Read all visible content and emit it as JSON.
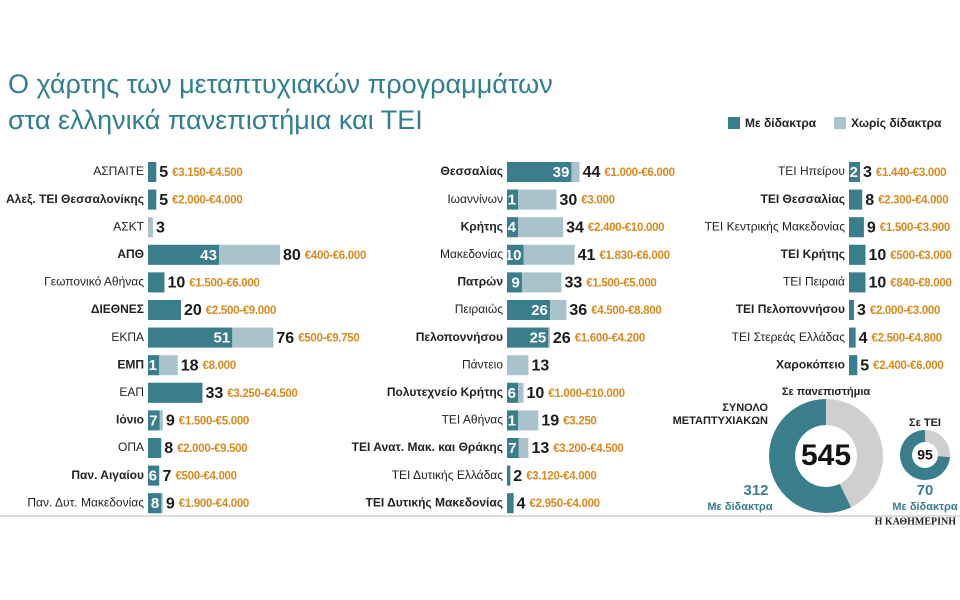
{
  "chart_data": {
    "type": "paired-bar",
    "title": [
      "Ο χάρτης των μεταπτυχιακών προγραμμάτων",
      "στα ελληνικά πανεπιστήμια και ΤΕΙ"
    ],
    "legend": [
      {
        "name": "Με δίδακτρα",
        "color": "#3a7d8c"
      },
      {
        "name": "Χωρίς δίδακτρα",
        "color": "#a9c3cc"
      }
    ],
    "range_color": "#d98a1f",
    "columns": [
      [
        {
          "name": "ΑΣΠΑΙΤΕ",
          "paid": 5,
          "total": 5,
          "range": "€3.150-€4.500"
        },
        {
          "name": "Αλεξ. ΤΕΙ Θεσσαλονίκης",
          "paid": 5,
          "total": 5,
          "range": "€2.000-€4.000"
        },
        {
          "name": "ΑΣΚΤ",
          "paid": 0,
          "total": 3
        },
        {
          "name": "ΑΠΘ",
          "paid": 43,
          "total": 80,
          "range": "€400-€6.000"
        },
        {
          "name": "Γεωπονικό Αθήνας",
          "paid": 10,
          "total": 10,
          "range": "€1.500-€6.000"
        },
        {
          "name": "ΔΙΕΘΝΕΣ",
          "paid": 20,
          "total": 20,
          "range": "€2.500-€9.000"
        },
        {
          "name": "ΕΚΠΑ",
          "paid": 51,
          "total": 76,
          "range": "€500-€9.750"
        },
        {
          "name": "ΕΜΠ",
          "paid": 1,
          "total": 18,
          "range": "€8.000"
        },
        {
          "name": "ΕΑΠ",
          "paid": 33,
          "total": 33,
          "range": "€3.250-€4.500"
        },
        {
          "name": "Ιόνιο",
          "paid": 7,
          "total": 9,
          "range": "€1.500-€5.000"
        },
        {
          "name": "ΟΠΑ",
          "paid": 8,
          "total": 8,
          "range": "€2.000-€9.500"
        },
        {
          "name": "Παν. Αιγαίου",
          "paid": 6,
          "total": 7,
          "range": "€500-€4.000"
        },
        {
          "name": "Παν. Δυτ. Μακεδονίας",
          "paid": 8,
          "total": 9,
          "range": "€1.900-€4.000"
        }
      ],
      [
        {
          "name": "Θεσσαλίας",
          "paid": 39,
          "total": 44,
          "range": "€1.000-€6.000"
        },
        {
          "name": "Ιωαννίνων",
          "paid": 1,
          "total": 30,
          "range": "€3.000"
        },
        {
          "name": "Κρήτης",
          "paid": 4,
          "total": 34,
          "range": "€2.400-€10.000"
        },
        {
          "name": "Μακεδονίας",
          "paid": 10,
          "total": 41,
          "range": "€1.830-€6.000"
        },
        {
          "name": "Πατρών",
          "paid": 9,
          "total": 33,
          "range": "€1.500-€5.000"
        },
        {
          "name": "Πειραιώς",
          "paid": 26,
          "total": 36,
          "range": "€4.500-€8.800"
        },
        {
          "name": "Πελοποννήσου",
          "paid": 25,
          "total": 26,
          "range": "€1.600-€4.200"
        },
        {
          "name": "Πάντειο",
          "paid": 0,
          "total": 13
        },
        {
          "name": "Πολυτεχνείο Κρήτης",
          "paid": 6,
          "total": 10,
          "range": "€1.000-€10.000"
        },
        {
          "name": "ΤΕΙ Αθήνας",
          "paid": 1,
          "total": 19,
          "range": "€3.250"
        },
        {
          "name": "ΤΕΙ Ανατ. Μακ. και Θράκης",
          "paid": 7,
          "total": 13,
          "range": "€3.200-€4.500"
        },
        {
          "name": "ΤΕΙ Δυτικής Ελλάδας",
          "paid": 2,
          "total": 2,
          "range": "€3.120-€4.000"
        },
        {
          "name": "ΤΕΙ Δυτικής Μακεδονίας",
          "paid": 4,
          "total": 4,
          "range": "€2.950-€4.000"
        }
      ],
      [
        {
          "name": "ΤΕΙ Ηπείρου",
          "paid": 2,
          "total": 3,
          "range": "€1.440-€3.000"
        },
        {
          "name": "ΤΕΙ Θεσσαλίας",
          "paid": 8,
          "total": 8,
          "range": "€2.300-€4.000"
        },
        {
          "name": "ΤΕΙ Κεντρικής Μακεδονίας",
          "paid": 9,
          "total": 9,
          "range": "€1.500-€3.900"
        },
        {
          "name": "ΤΕΙ Κρήτης",
          "paid": 10,
          "total": 10,
          "range": "€500-€3.000"
        },
        {
          "name": "ΤΕΙ Πειραιά",
          "paid": 10,
          "total": 10,
          "range": "€840-€8.000"
        },
        {
          "name": "ΤΕΙ Πελοποννήσου",
          "paid": 3,
          "total": 3,
          "range": "€2.000-€3.000"
        },
        {
          "name": "ΤΕΙ Στερεάς Ελλάδας",
          "paid": 4,
          "total": 4,
          "range": "€2.500-€4.800"
        },
        {
          "name": "Χαροκόπειο",
          "paid": 5,
          "total": 5,
          "range": "€2.400-€6.000"
        }
      ]
    ],
    "donuts": [
      {
        "title": "Σε πανεπιστήμια",
        "heading": [
          "ΣΥΝΟΛΟ",
          "ΜΕΤΑΠΤΥΧΙΑΚΩΝ"
        ],
        "total": 545,
        "paid": 312,
        "paid_label": "Με δίδακτρα",
        "free_color": "#cfcfcf"
      },
      {
        "title": "Σε ΤΕΙ",
        "total": 95,
        "paid": 70,
        "paid_label": "Με δίδακτρα",
        "free_color": "#cfcfcf"
      }
    ],
    "source": "Η ΚΑΘΗΜΕΡΙΝΗ"
  }
}
